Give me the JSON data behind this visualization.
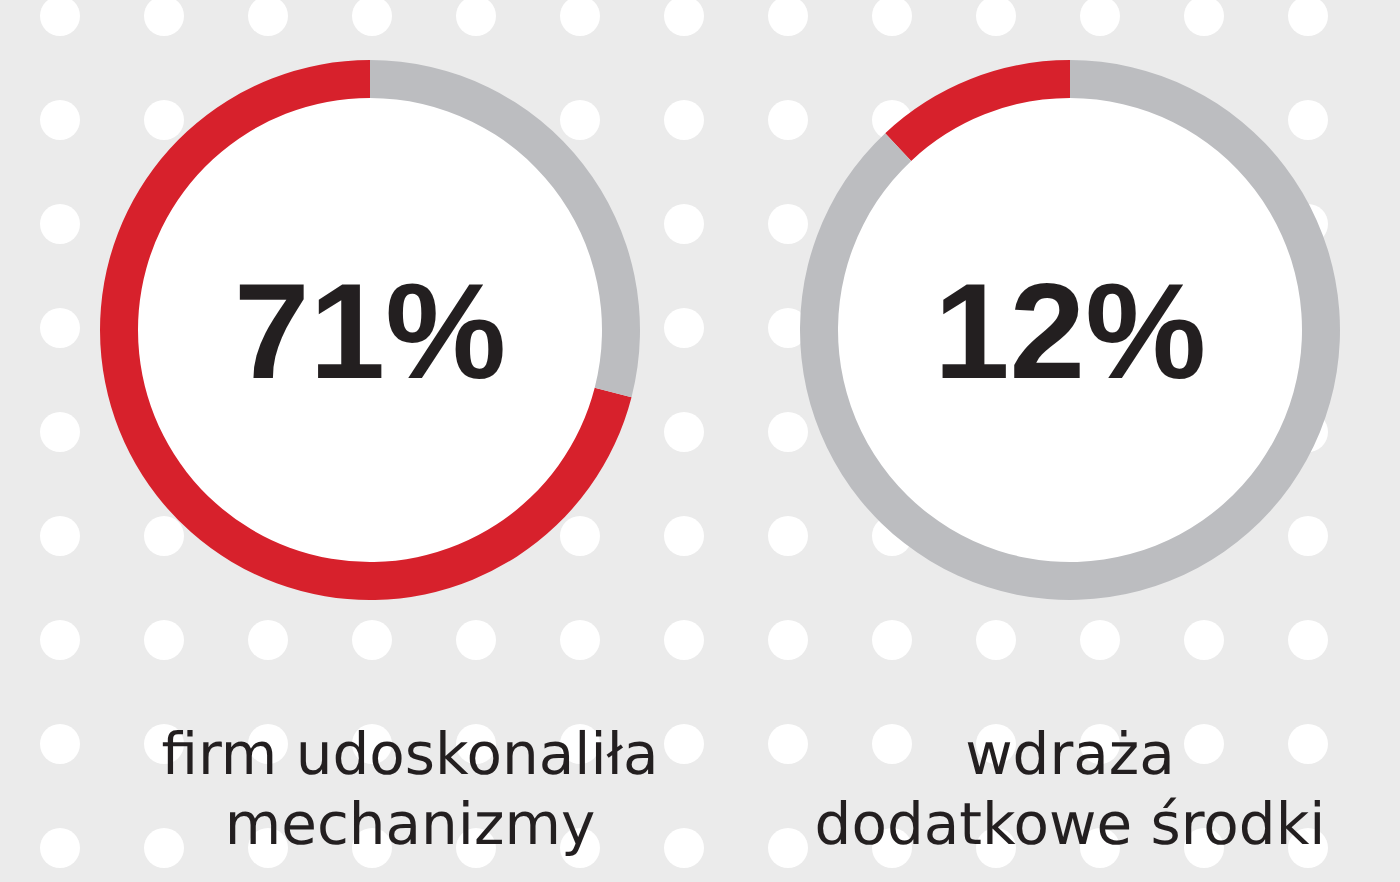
{
  "chart_data": [
    {
      "type": "donut",
      "title": "71%",
      "categories": [
        null,
        null
      ],
      "values": [
        71,
        29
      ],
      "colors": [
        "#d7212c",
        "#bcbdc0"
      ],
      "annotations": [
        "firm udoskonaliła",
        "mechanizmy"
      ]
    },
    {
      "type": "donut",
      "title": "12%",
      "categories": [
        null,
        null
      ],
      "values": [
        12,
        88
      ],
      "colors": [
        "#d7212c",
        "#bcbdc0"
      ],
      "annotations": [
        "wdraża",
        "dodatkowe środki"
      ]
    }
  ]
}
